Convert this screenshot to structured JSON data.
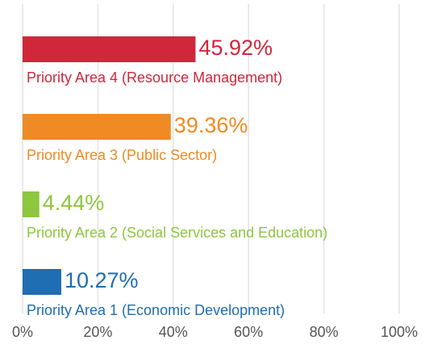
{
  "chart_data": {
    "type": "bar",
    "orientation": "horizontal",
    "categories": [
      "Priority Area 4 (Resource Management)",
      "Priority Area 3 (Public Sector)",
      "Priority Area 2 (Social Services and Education)",
      "Priority Area 1 (Economic Development)"
    ],
    "values": [
      45.92,
      39.36,
      4.44,
      10.27
    ],
    "value_labels": [
      "45.92%",
      "39.36%",
      "4.44%",
      "10.27%"
    ],
    "colors": [
      "#d0273a",
      "#f08a24",
      "#8dc63f",
      "#1f6db3"
    ],
    "xlim": [
      0,
      100
    ],
    "xticks": [
      {
        "value": 0,
        "label": "0%"
      },
      {
        "value": 20,
        "label": "20%"
      },
      {
        "value": 40,
        "label": "40%"
      },
      {
        "value": 60,
        "label": "60%"
      },
      {
        "value": 80,
        "label": "80%"
      },
      {
        "value": 100,
        "label": "100%"
      }
    ],
    "grid": true
  }
}
